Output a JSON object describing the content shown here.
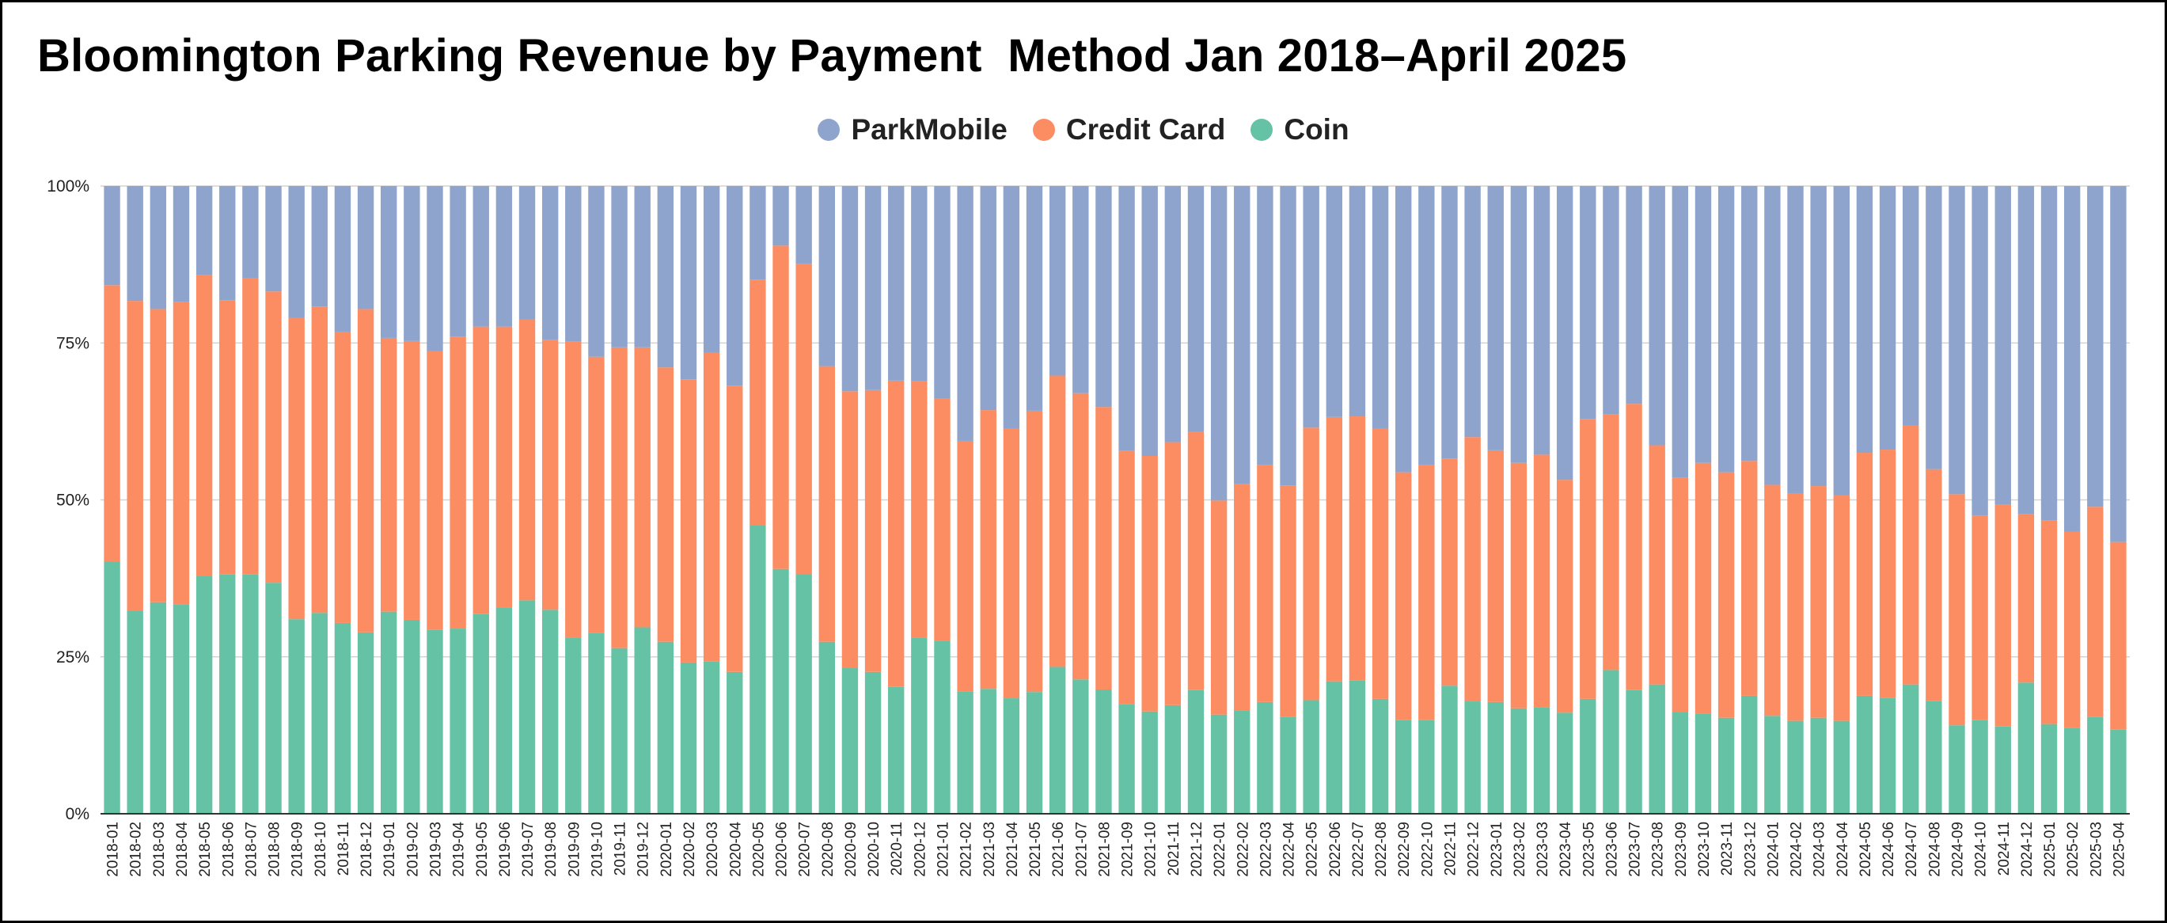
{
  "chart_data": {
    "type": "stacked-bar-100",
    "title": "Bloomington Parking Revenue by Payment  Method Jan 2018–April 2025",
    "xlabel": "",
    "ylabel": "",
    "ylim": [
      0,
      100
    ],
    "yticks": [
      "0%",
      "25%",
      "50%",
      "75%",
      "100%"
    ],
    "legend_position": "top-center",
    "colors": {
      "ParkMobile": "#8fa4cc",
      "Credit Card": "#fc8d62",
      "Coin": "#66c2a5"
    },
    "categories": [
      "2018-01",
      "2018-02",
      "2018-03",
      "2018-04",
      "2018-05",
      "2018-06",
      "2018-07",
      "2018-08",
      "2018-09",
      "2018-10",
      "2018-11",
      "2018-12",
      "2019-01",
      "2019-02",
      "2019-03",
      "2019-04",
      "2019-05",
      "2019-06",
      "2019-07",
      "2019-08",
      "2019-09",
      "2019-10",
      "2019-11",
      "2019-12",
      "2020-01",
      "2020-02",
      "2020-03",
      "2020-04",
      "2020-05",
      "2020-06",
      "2020-07",
      "2020-08",
      "2020-09",
      "2020-10",
      "2020-11",
      "2020-12",
      "2021-01",
      "2021-02",
      "2021-03",
      "2021-04",
      "2021-05",
      "2021-06",
      "2021-07",
      "2021-08",
      "2021-09",
      "2021-10",
      "2021-11",
      "2021-12",
      "2022-01",
      "2022-02",
      "2022-03",
      "2022-04",
      "2022-05",
      "2022-06",
      "2022-07",
      "2022-08",
      "2022-09",
      "2022-10",
      "2022-11",
      "2022-12",
      "2023-01",
      "2023-02",
      "2023-03",
      "2023-04",
      "2023-05",
      "2023-06",
      "2023-07",
      "2023-08",
      "2023-09",
      "2023-10",
      "2023-11",
      "2023-12",
      "2024-01",
      "2024-02",
      "2024-03",
      "2024-04",
      "2024-05",
      "2024-06",
      "2024-07",
      "2024-08",
      "2024-09",
      "2024-10",
      "2024-11",
      "2024-12",
      "2025-01",
      "2025-02",
      "2025-03",
      "2025-04"
    ],
    "series": [
      {
        "name": "Coin",
        "values": [
          40.1,
          32.4,
          33.7,
          33.3,
          37.9,
          38.1,
          38.1,
          36.8,
          31.0,
          32.0,
          30.4,
          28.9,
          32.2,
          30.9,
          29.3,
          29.5,
          31.8,
          32.9,
          34.0,
          32.5,
          28.0,
          28.8,
          26.4,
          29.7,
          27.4,
          24.1,
          24.3,
          22.6,
          45.9,
          39.0,
          38.2,
          27.4,
          23.2,
          22.6,
          20.2,
          28.1,
          27.6,
          19.5,
          19.9,
          18.4,
          19.4,
          23.4,
          21.4,
          19.8,
          17.5,
          16.3,
          17.3,
          19.7,
          15.8,
          16.4,
          17.8,
          15.4,
          18.1,
          21.1,
          21.2,
          18.3,
          14.9,
          14.9,
          20.4,
          17.9,
          17.8,
          16.8,
          17.0,
          16.1,
          18.3,
          22.9,
          19.7,
          20.6,
          16.2,
          15.9,
          15.3,
          18.8,
          15.6,
          14.8,
          15.3,
          14.8,
          18.8,
          18.5,
          20.6,
          18.0,
          14.1,
          14.9,
          13.9,
          20.9,
          14.3,
          13.7,
          15.4,
          13.4
        ]
      },
      {
        "name": "Credit Card",
        "values": [
          44.1,
          49.3,
          46.7,
          48.2,
          47.9,
          43.7,
          47.2,
          46.4,
          48.0,
          48.8,
          46.4,
          51.5,
          43.6,
          44.4,
          44.4,
          46.5,
          45.8,
          44.7,
          44.7,
          43.0,
          47.2,
          44.0,
          47.9,
          44.6,
          43.7,
          45.1,
          49.1,
          45.6,
          39.2,
          51.5,
          49.4,
          43.9,
          44.1,
          44.9,
          48.8,
          40.8,
          38.6,
          39.9,
          44.4,
          42.9,
          44.8,
          46.4,
          45.6,
          45.0,
          40.3,
          40.7,
          41.9,
          41.1,
          34.1,
          36.1,
          37.8,
          36.9,
          43.4,
          42.1,
          42.1,
          43.0,
          39.5,
          40.7,
          36.2,
          42.1,
          40.1,
          39.1,
          40.2,
          37.1,
          44.6,
          40.7,
          45.6,
          38.1,
          37.3,
          40.0,
          39.1,
          37.4,
          36.8,
          36.2,
          36.9,
          35.9,
          38.7,
          39.5,
          41.2,
          36.9,
          36.8,
          32.6,
          35.4,
          26.8,
          32.4,
          31.2,
          33.5,
          29.9
        ]
      },
      {
        "name": "ParkMobile",
        "values": [
          15.8,
          18.3,
          19.6,
          18.5,
          14.2,
          18.2,
          14.7,
          16.8,
          21.0,
          19.2,
          23.2,
          19.6,
          24.2,
          24.7,
          26.3,
          24.0,
          22.4,
          22.4,
          21.3,
          24.5,
          24.8,
          27.2,
          25.7,
          25.7,
          28.9,
          30.8,
          26.6,
          31.8,
          14.9,
          9.5,
          12.4,
          28.7,
          32.7,
          32.5,
          31.0,
          31.1,
          33.8,
          40.6,
          35.7,
          38.7,
          35.8,
          30.2,
          33.0,
          35.2,
          42.2,
          43.0,
          40.8,
          39.2,
          50.1,
          47.5,
          44.4,
          47.7,
          38.5,
          36.8,
          36.7,
          38.7,
          45.6,
          44.4,
          43.4,
          40.0,
          42.1,
          44.1,
          42.8,
          46.8,
          37.1,
          36.4,
          34.7,
          41.3,
          46.5,
          44.1,
          45.6,
          43.8,
          47.6,
          49.0,
          47.8,
          49.3,
          42.5,
          42.0,
          38.2,
          45.1,
          49.1,
          52.5,
          50.7,
          52.3,
          53.3,
          55.1,
          51.1,
          56.7
        ]
      }
    ]
  }
}
